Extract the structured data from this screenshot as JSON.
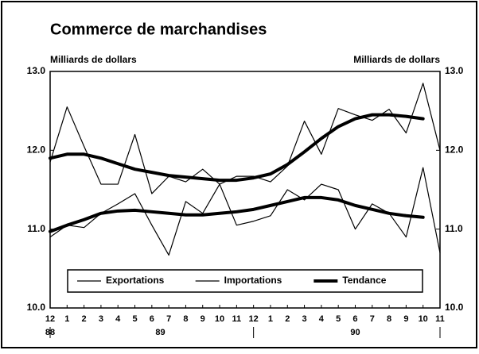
{
  "chart_data": {
    "type": "line",
    "title": "Commerce de marchandises",
    "ylabel": "Milliards de dollars",
    "y2label": "Milliards de dollars",
    "categories": [
      "12",
      "1",
      "2",
      "3",
      "4",
      "5",
      "6",
      "7",
      "8",
      "9",
      "10",
      "11",
      "12",
      "1",
      "2",
      "3",
      "4",
      "5",
      "6",
      "7",
      "8",
      "9",
      "10",
      "11"
    ],
    "years": [
      "88",
      "89",
      "90"
    ],
    "ylim": [
      10,
      13
    ],
    "yticks": [
      {
        "value": 10,
        "label": "10.0"
      },
      {
        "value": 11,
        "label": "11.0"
      },
      {
        "value": 12,
        "label": "12.0"
      },
      {
        "value": 13,
        "label": "13.0"
      }
    ],
    "y2lim": [
      10,
      13
    ],
    "y2ticks": [
      {
        "value": 10,
        "label": "10.0"
      },
      {
        "value": 11,
        "label": "11.0"
      },
      {
        "value": 12,
        "label": "12.0"
      },
      {
        "value": 13,
        "label": "13.0"
      }
    ],
    "legend": "bottom",
    "series": [
      {
        "name": "Exportations",
        "color": "#000000",
        "width": 1.2,
        "values": [
          11.85,
          12.55,
          12.05,
          11.57,
          11.57,
          12.2,
          11.45,
          11.67,
          11.6,
          11.76,
          11.57,
          11.67,
          11.67,
          11.6,
          11.8,
          12.37,
          11.95,
          12.53,
          12.45,
          12.38,
          12.52,
          12.22,
          12.85,
          12.0
        ]
      },
      {
        "name": "Importations",
        "color": "#000000",
        "width": 1.2,
        "values": [
          10.9,
          11.05,
          11.02,
          11.2,
          11.32,
          11.45,
          11.05,
          10.67,
          11.35,
          11.2,
          11.57,
          11.05,
          11.1,
          11.17,
          11.5,
          11.37,
          11.57,
          11.5,
          11.0,
          11.32,
          11.2,
          10.9,
          11.78,
          10.7
        ]
      },
      {
        "name": "Tendance",
        "color": "#000000",
        "width": 4,
        "values": [
          [
            11.9,
            11.95,
            11.95,
            11.9,
            11.83,
            11.76,
            11.72,
            11.68,
            11.66,
            11.64,
            11.62,
            11.62,
            11.65,
            11.7,
            11.82,
            11.98,
            12.15,
            12.3,
            12.4,
            12.45,
            12.45,
            12.43,
            12.4,
            null
          ],
          [
            10.97,
            11.05,
            11.12,
            11.2,
            11.23,
            11.24,
            11.22,
            11.2,
            11.18,
            11.18,
            11.2,
            11.22,
            11.25,
            11.3,
            11.35,
            11.4,
            11.4,
            11.37,
            11.3,
            11.25,
            11.2,
            11.17,
            11.15,
            null
          ]
        ]
      }
    ]
  }
}
